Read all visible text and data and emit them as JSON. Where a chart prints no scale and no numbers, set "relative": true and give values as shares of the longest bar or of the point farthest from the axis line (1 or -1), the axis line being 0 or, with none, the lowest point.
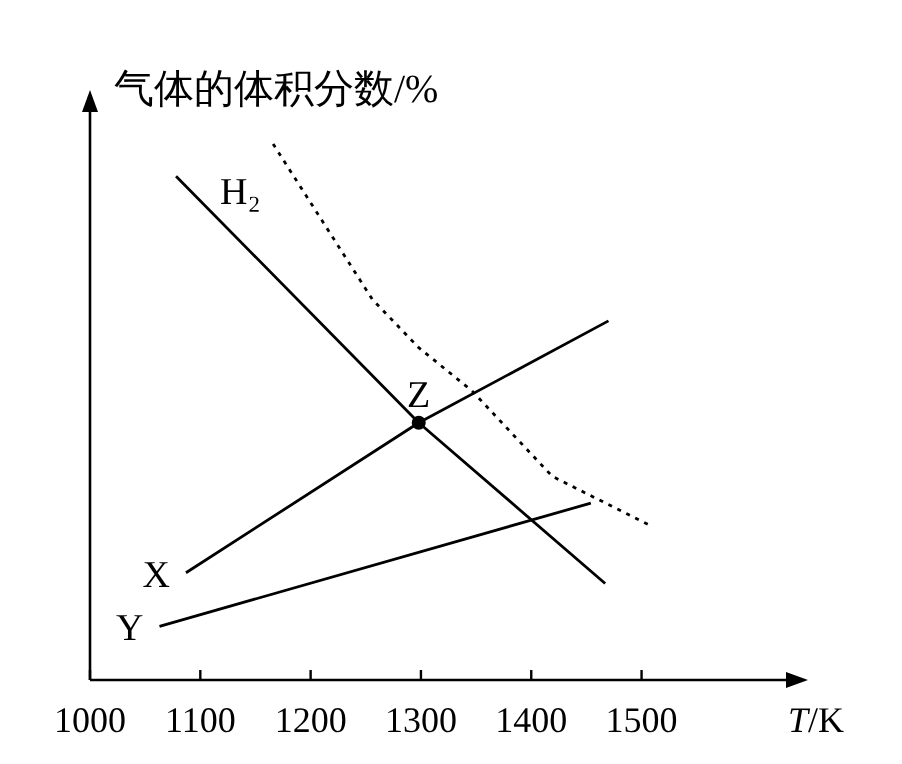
{
  "chart_data": {
    "type": "line",
    "relative": true,
    "ylabel": "气体的体积分数/%",
    "xlabel": "T/K",
    "xlim": [
      1000,
      1640
    ],
    "xticks": [
      1000,
      1100,
      1200,
      1300,
      1400,
      1500
    ],
    "series": [
      {
        "name": "H₂",
        "color": "#000000",
        "x": [
          1078,
          1298,
          1467
        ],
        "values": [
          0.94,
          0.48,
          0.18
        ]
      },
      {
        "name": "X",
        "color": "#000000",
        "x": [
          1087,
          1298,
          1470
        ],
        "values": [
          0.2,
          0.48,
          0.67
        ]
      },
      {
        "name": "Y",
        "color": "#000000",
        "x": [
          1063,
          1454
        ],
        "values": [
          0.1,
          0.33
        ]
      },
      {
        "color": "#000000",
        "line_style": "dotted",
        "x": [
          1166,
          1256,
          1298,
          1346,
          1419,
          1506
        ],
        "values": [
          1.0,
          0.71,
          0.62,
          0.54,
          0.38,
          0.29
        ]
      }
    ],
    "annotations": [
      {
        "text": "Z",
        "x": 1298,
        "y": 0.48
      }
    ]
  }
}
